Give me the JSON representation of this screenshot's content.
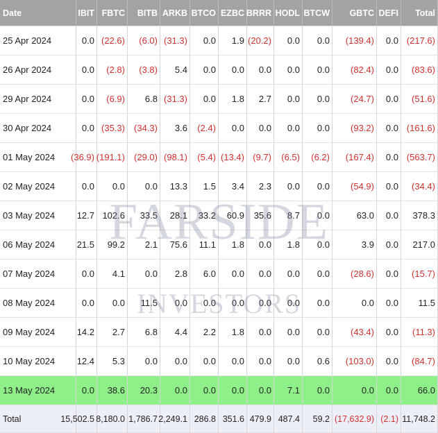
{
  "table": {
    "header": [
      "Date",
      "IBIT",
      "FBTC",
      "BITB",
      "ARKB",
      "BTCO",
      "EZBC",
      "BRRR",
      "HODL",
      "BTCW",
      "GBTC",
      "DEFI",
      "Total"
    ],
    "rows": [
      [
        "25 Apr 2024",
        "0.0",
        "(22.6)",
        "(6.0)",
        "(31.3)",
        "0.0",
        "1.9",
        "(20.2)",
        "0.0",
        "0.0",
        "(139.4)",
        "0.0",
        "(217.6)"
      ],
      [
        "26 Apr 2024",
        "0.0",
        "(2.8)",
        "(3.8)",
        "5.4",
        "0.0",
        "0.0",
        "0.0",
        "0.0",
        "0.0",
        "(82.4)",
        "0.0",
        "(83.6)"
      ],
      [
        "29 Apr 2024",
        "0.0",
        "(6.9)",
        "6.8",
        "(31.3)",
        "0.0",
        "1.8",
        "2.7",
        "0.0",
        "0.0",
        "(24.7)",
        "0.0",
        "(51.6)"
      ],
      [
        "30 Apr 2024",
        "0.0",
        "(35.3)",
        "(34.3)",
        "3.6",
        "(2.4)",
        "0.0",
        "0.0",
        "0.0",
        "0.0",
        "(93.2)",
        "0.0",
        "(161.6)"
      ],
      [
        "01 May 2024",
        "(36.9)",
        "(191.1)",
        "(29.0)",
        "(98.1)",
        "(5.4)",
        "(13.4)",
        "(9.7)",
        "(6.5)",
        "(6.2)",
        "(167.4)",
        "0.0",
        "(563.7)"
      ],
      [
        "02 May 2024",
        "0.0",
        "0.0",
        "0.0",
        "13.3",
        "1.5",
        "3.4",
        "2.3",
        "0.0",
        "0.0",
        "(54.9)",
        "0.0",
        "(34.4)"
      ],
      [
        "03 May 2024",
        "12.7",
        "102.6",
        "33.5",
        "28.1",
        "33.2",
        "60.9",
        "35.6",
        "8.7",
        "0.0",
        "63.0",
        "0.0",
        "378.3"
      ],
      [
        "06 May 2024",
        "21.5",
        "99.2",
        "2.1",
        "75.6",
        "11.1",
        "1.8",
        "0.0",
        "1.8",
        "0.0",
        "3.9",
        "0.0",
        "217.0"
      ],
      [
        "07 May 2024",
        "0.0",
        "4.1",
        "0.0",
        "2.8",
        "6.0",
        "0.0",
        "0.0",
        "0.0",
        "0.0",
        "(28.6)",
        "0.0",
        "(15.7)"
      ],
      [
        "08 May 2024",
        "0.0",
        "0.0",
        "11.5",
        "0.0",
        "0.0",
        "0.0",
        "0.0",
        "0.0",
        "0.0",
        "0.0",
        "0.0",
        "11.5"
      ],
      [
        "09 May 2024",
        "14.2",
        "2.7",
        "6.8",
        "4.4",
        "2.2",
        "1.8",
        "0.0",
        "0.0",
        "0.0",
        "(43.4)",
        "0.0",
        "(11.3)"
      ],
      [
        "10 May 2024",
        "12.4",
        "5.3",
        "0.0",
        "0.0",
        "0.0",
        "0.0",
        "0.0",
        "0.0",
        "0.6",
        "(103.0)",
        "0.0",
        "(84.7)"
      ],
      [
        "13 May 2024",
        "0.0",
        "38.6",
        "20.3",
        "0.0",
        "0.0",
        "0.0",
        "0.0",
        "7.1",
        "0.0",
        "0.0",
        "0.0",
        "66.0"
      ]
    ],
    "total": [
      "Total",
      "15,502.5",
      "8,180.0",
      "1,786.7",
      "2,249.1",
      "286.8",
      "351.6",
      "479.9",
      "487.4",
      "59.2",
      "(17,632.9)",
      "(2.1)",
      "11,748.2"
    ]
  },
  "watermark": {
    "line1": "FARSIDE",
    "line2": "INVESTORS"
  }
}
